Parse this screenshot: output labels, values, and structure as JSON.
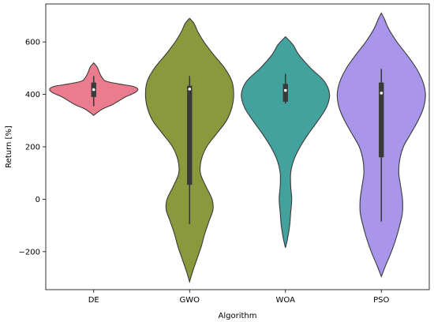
{
  "chart_data": {
    "type": "violin",
    "title": "",
    "xlabel": "Algorithm",
    "ylabel": "Return [%]",
    "ylim": [
      -345,
      745
    ],
    "yticks": [
      -200,
      0,
      200,
      400,
      600
    ],
    "grid": false,
    "legend": "none",
    "categories": [
      "DE",
      "GWO",
      "WOA",
      "PSO"
    ],
    "colors": {
      "DE": "#eb7c8e",
      "GWO": "#8b993d",
      "WOA": "#44a29e",
      "PSO": "#a996ea",
      "outline": "#3a3a3a",
      "box": "#3a3a3a",
      "median": "#ffffff"
    },
    "series": [
      {
        "category": "DE",
        "whisker_low": 355,
        "q1": 390,
        "median": 418,
        "q3": 445,
        "whisker_high": 470,
        "density": [
          [
            320,
            0
          ],
          [
            330,
            4
          ],
          [
            345,
            11
          ],
          [
            360,
            22
          ],
          [
            375,
            30
          ],
          [
            390,
            38
          ],
          [
            400,
            45
          ],
          [
            410,
            51
          ],
          [
            420,
            53
          ],
          [
            430,
            48
          ],
          [
            440,
            30
          ],
          [
            450,
            15
          ],
          [
            460,
            11
          ],
          [
            475,
            8
          ],
          [
            490,
            6
          ],
          [
            505,
            4
          ],
          [
            520,
            0
          ]
        ]
      },
      {
        "category": "GWO",
        "whisker_low": -95,
        "q1": 55,
        "median": 420,
        "q3": 433,
        "whisker_high": 470,
        "density": [
          [
            -315,
            0
          ],
          [
            -280,
            3
          ],
          [
            -230,
            8
          ],
          [
            -180,
            13
          ],
          [
            -130,
            17
          ],
          [
            -80,
            22
          ],
          [
            -40,
            26
          ],
          [
            0,
            25
          ],
          [
            50,
            18
          ],
          [
            100,
            12
          ],
          [
            150,
            13
          ],
          [
            200,
            19
          ],
          [
            250,
            30
          ],
          [
            300,
            41
          ],
          [
            350,
            47
          ],
          [
            400,
            49
          ],
          [
            450,
            47
          ],
          [
            500,
            39
          ],
          [
            550,
            27
          ],
          [
            600,
            16
          ],
          [
            640,
            9
          ],
          [
            670,
            5
          ],
          [
            690,
            0
          ]
        ]
      },
      {
        "category": "WOA",
        "whisker_low": 365,
        "q1": 372,
        "median": 415,
        "q3": 440,
        "whisker_high": 478,
        "density": [
          [
            -185,
            0
          ],
          [
            -150,
            2
          ],
          [
            -100,
            4
          ],
          [
            -50,
            5
          ],
          [
            0,
            6
          ],
          [
            50,
            5
          ],
          [
            100,
            5
          ],
          [
            150,
            8
          ],
          [
            200,
            14
          ],
          [
            250,
            22
          ],
          [
            300,
            31
          ],
          [
            350,
            39
          ],
          [
            400,
            42
          ],
          [
            450,
            37
          ],
          [
            500,
            24
          ],
          [
            550,
            13
          ],
          [
            590,
            7
          ],
          [
            620,
            0
          ]
        ]
      },
      {
        "category": "PSO",
        "whisker_low": -85,
        "q1": 160,
        "median": 405,
        "q3": 445,
        "whisker_high": 497,
        "density": [
          [
            -295,
            0
          ],
          [
            -250,
            5
          ],
          [
            -200,
            11
          ],
          [
            -150,
            16
          ],
          [
            -100,
            20
          ],
          [
            -50,
            23
          ],
          [
            0,
            23
          ],
          [
            50,
            21
          ],
          [
            100,
            19
          ],
          [
            150,
            20
          ],
          [
            200,
            24
          ],
          [
            250,
            32
          ],
          [
            300,
            40
          ],
          [
            350,
            46
          ],
          [
            400,
            48
          ],
          [
            450,
            45
          ],
          [
            500,
            38
          ],
          [
            550,
            28
          ],
          [
            600,
            17
          ],
          [
            650,
            8
          ],
          [
            690,
            3
          ],
          [
            710,
            0
          ]
        ]
      }
    ]
  }
}
